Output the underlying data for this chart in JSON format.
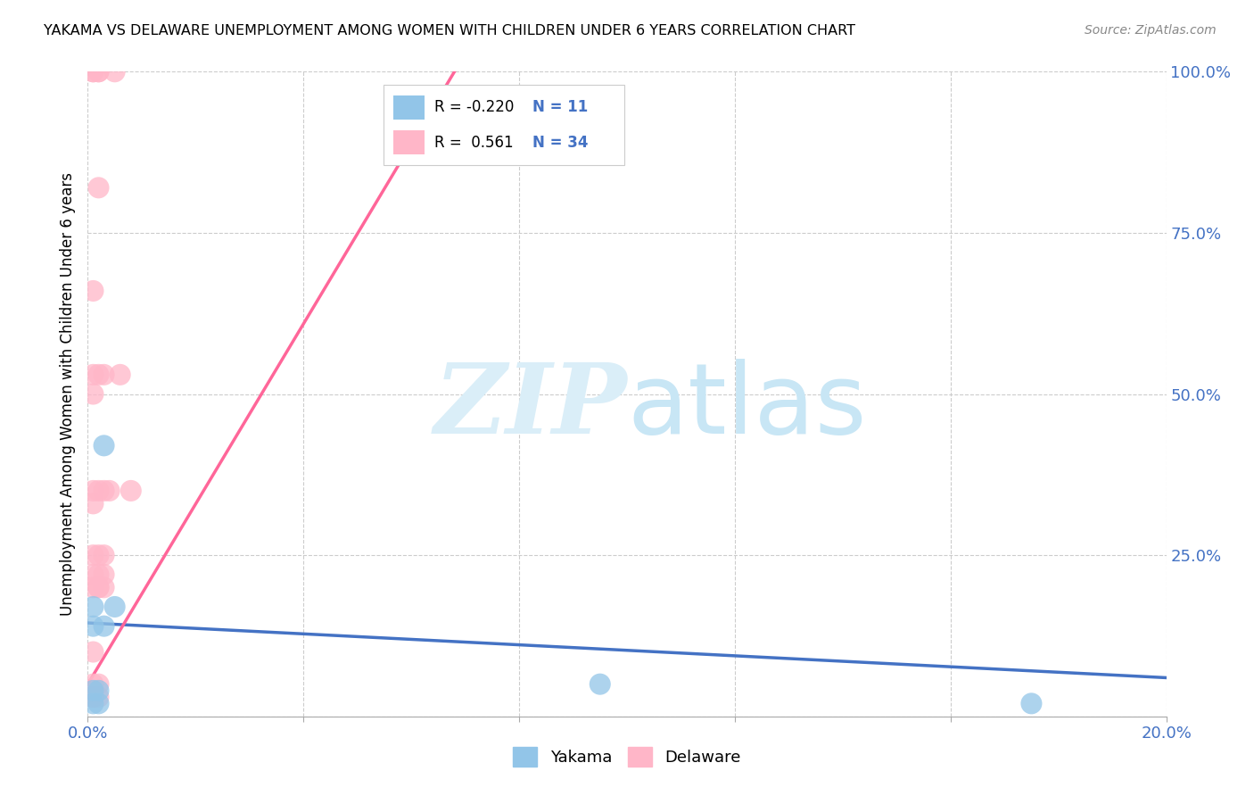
{
  "title": "YAKAMA VS DELAWARE UNEMPLOYMENT AMONG WOMEN WITH CHILDREN UNDER 6 YEARS CORRELATION CHART",
  "source": "Source: ZipAtlas.com",
  "ylabel": "Unemployment Among Women with Children Under 6 years",
  "xlim": [
    0.0,
    0.2
  ],
  "ylim": [
    0.0,
    1.0
  ],
  "xticks": [
    0.0,
    0.04,
    0.08,
    0.12,
    0.16,
    0.2
  ],
  "yticks": [
    0.0,
    0.25,
    0.5,
    0.75,
    1.0
  ],
  "yakama_R": -0.22,
  "yakama_N": 11,
  "delaware_R": 0.561,
  "delaware_N": 34,
  "yakama_color": "#92C5E8",
  "delaware_color": "#FFB6C8",
  "yakama_line_color": "#4472C4",
  "delaware_line_color": "#FF6699",
  "yakama_points": [
    [
      0.001,
      0.17
    ],
    [
      0.001,
      0.14
    ],
    [
      0.001,
      0.02
    ],
    [
      0.001,
      0.04
    ],
    [
      0.002,
      0.02
    ],
    [
      0.002,
      0.04
    ],
    [
      0.003,
      0.14
    ],
    [
      0.003,
      0.42
    ],
    [
      0.005,
      0.17
    ],
    [
      0.095,
      0.05
    ],
    [
      0.175,
      0.02
    ]
  ],
  "delaware_points": [
    [
      0.001,
      1.0
    ],
    [
      0.001,
      1.0
    ],
    [
      0.001,
      0.66
    ],
    [
      0.001,
      0.53
    ],
    [
      0.001,
      0.5
    ],
    [
      0.001,
      0.35
    ],
    [
      0.001,
      0.33
    ],
    [
      0.001,
      0.25
    ],
    [
      0.001,
      0.22
    ],
    [
      0.001,
      0.2
    ],
    [
      0.001,
      0.1
    ],
    [
      0.001,
      0.05
    ],
    [
      0.001,
      0.03
    ],
    [
      0.001,
      0.03
    ],
    [
      0.002,
      1.0
    ],
    [
      0.002,
      1.0
    ],
    [
      0.002,
      0.82
    ],
    [
      0.002,
      0.53
    ],
    [
      0.002,
      0.35
    ],
    [
      0.002,
      0.25
    ],
    [
      0.002,
      0.22
    ],
    [
      0.002,
      0.2
    ],
    [
      0.002,
      0.2
    ],
    [
      0.002,
      0.05
    ],
    [
      0.002,
      0.03
    ],
    [
      0.003,
      0.53
    ],
    [
      0.003,
      0.35
    ],
    [
      0.003,
      0.25
    ],
    [
      0.003,
      0.22
    ],
    [
      0.003,
      0.2
    ],
    [
      0.004,
      0.35
    ],
    [
      0.005,
      1.0
    ],
    [
      0.006,
      0.53
    ],
    [
      0.008,
      0.35
    ]
  ],
  "yakama_line": [
    [
      0.0,
      0.145
    ],
    [
      0.2,
      0.06
    ]
  ],
  "delaware_line": [
    [
      0.0,
      0.05
    ],
    [
      0.068,
      1.0
    ]
  ]
}
